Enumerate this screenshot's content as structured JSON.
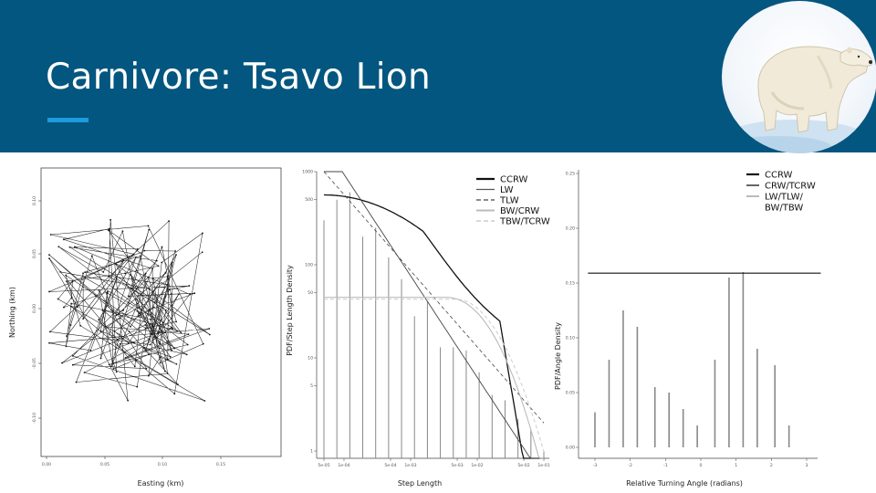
{
  "slide": {
    "title": "Carnivore: Tsavo Lion",
    "photo_alt": "polar-bear"
  },
  "colors": {
    "header_bg": "#03567f",
    "accent_bar": "#1e9bde",
    "title_text": "#ffffff"
  },
  "chart_data": [
    {
      "type": "line",
      "title": "",
      "xlabel": "Easting (km)",
      "ylabel": "Northing (km)",
      "x_ticks": [
        "0.00",
        "0.05",
        "0.10",
        "0.15"
      ],
      "y_ticks": [
        "-0.10",
        "-0.05",
        "0.00",
        "0.05",
        "0.10"
      ],
      "xlim": [
        0.0,
        0.15
      ],
      "ylim": [
        -0.1,
        0.1
      ],
      "description_type": "movement trajectory"
    },
    {
      "type": "bar",
      "xlabel": "Step Length",
      "ylabel": "PDF/Step Length Density",
      "scale": "log-log",
      "x_ticks": [
        "5e-05",
        "1e-04",
        "5e-04",
        "1e-03",
        "5e-03",
        "1e-02",
        "5e-02",
        "1e-01"
      ],
      "y_ticks": [
        "1",
        "5",
        "10",
        "50",
        "100",
        "500",
        "1000"
      ],
      "legend": [
        "CCRW",
        "LW",
        "TLW",
        "BW/CRW",
        "TBW/TCRW"
      ],
      "legend_position": "top-right",
      "histogram_values": [
        300,
        500,
        600,
        200,
        250,
        120,
        70,
        28,
        40,
        13,
        13,
        12,
        7,
        4,
        3.5,
        2.2,
        1.7,
        1
      ]
    },
    {
      "type": "bar",
      "xlabel": "Relative Turning Angle (radians)",
      "ylabel": "PDF/Angle Density",
      "x_ticks": [
        "-3",
        "-2",
        "-1",
        "0",
        "1",
        "2",
        "3"
      ],
      "y_ticks": [
        "0.00",
        "0.05",
        "0.10",
        "0.15",
        "0.20",
        "0.25"
      ],
      "ylim": [
        0,
        0.25
      ],
      "legend": [
        "CCRW",
        "CRW/TCRW",
        "LW/TLW/",
        "BW/TBW"
      ],
      "legend_position": "top-right",
      "categories": [
        -3.0,
        -2.6,
        -2.2,
        -1.8,
        -1.3,
        -0.9,
        -0.5,
        -0.1,
        0.4,
        0.8,
        1.2,
        1.6,
        2.1,
        2.5
      ],
      "values": [
        0.032,
        0.08,
        0.125,
        0.11,
        0.055,
        0.05,
        0.035,
        0.02,
        0.08,
        0.155,
        0.16,
        0.09,
        0.075,
        0.02
      ],
      "uniform_density": 0.159
    }
  ]
}
